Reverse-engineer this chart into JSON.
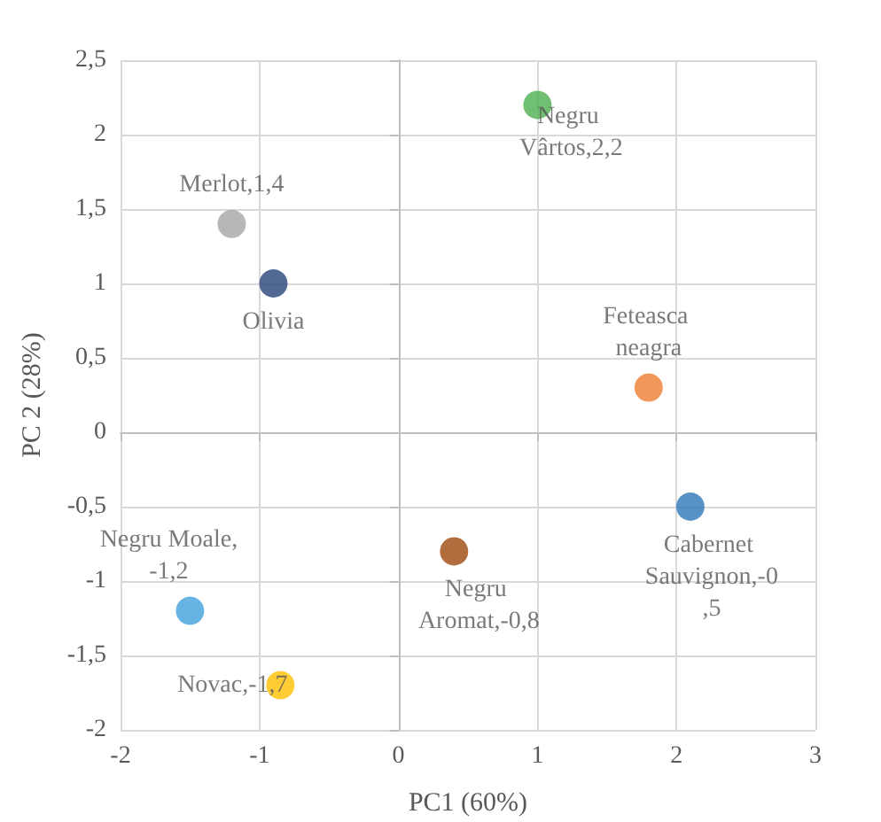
{
  "chart_data": {
    "type": "scatter",
    "xlabel": "PC1 (60%)",
    "ylabel": "PC 2 (28%)",
    "x": [
      -1.2,
      -0.9,
      1.0,
      1.8,
      2.1,
      0.4,
      -1.5,
      -0.85
    ],
    "values": [
      1.4,
      1.0,
      2.2,
      0.3,
      -0.5,
      -0.8,
      -1.2,
      -1.7
    ],
    "colors": [
      "#a5a5a5",
      "#264478",
      "#4caf50",
      "#ed7d31",
      "#2e75b6",
      "#9e480e",
      "#41a0dc",
      "#ffc000"
    ],
    "value_labels": [
      "Merlot,1,4",
      "Olivia",
      "Negru Vârtos,2,2",
      "Feteasca neagra",
      "Cabernet Sauvignon,-0,5",
      "Negru Aromat,-0,8",
      "Negru Moale,-1,2",
      "Novac,-1,7"
    ],
    "xlim": [
      -2,
      3
    ],
    "xticks": [
      -2,
      -1,
      0,
      1,
      2,
      3
    ],
    "ylim": [
      -2,
      2.5
    ],
    "yticks": [
      -2,
      {
        "value": -1.5,
        "label": "-1,5"
      },
      -1,
      {
        "value": -0.5,
        "label": "-0,5"
      },
      0,
      {
        "value": 0.5,
        "label": "0,5"
      },
      1,
      {
        "value": 1.5,
        "label": "1,5"
      },
      2,
      {
        "value": 2.5,
        "label": "2,5"
      }
    ],
    "grid": true,
    "marker": "circle"
  }
}
